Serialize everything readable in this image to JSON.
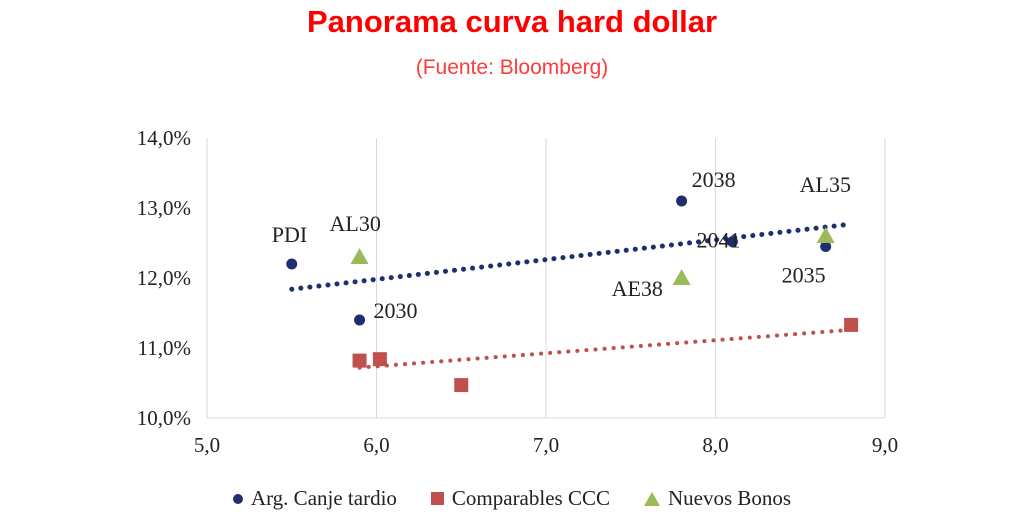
{
  "chart_data": {
    "type": "scatter",
    "title": "Panorama curva hard dollar",
    "subtitle": "(Fuente: Bloomberg)",
    "xlim": [
      5.0,
      9.0
    ],
    "ylim": [
      10.0,
      14.0
    ],
    "x_ticks": [
      "5,0",
      "6,0",
      "7,0",
      "8,0",
      "9,0"
    ],
    "y_ticks": [
      "10,0%",
      "11,0%",
      "12,0%",
      "13,0%",
      "14,0%"
    ],
    "grid": "vertical",
    "legend_position": "bottom",
    "series": [
      {
        "name": "Arg. Canje tardio",
        "marker": "circle",
        "color": "#1f2f6e",
        "points": [
          {
            "x": 5.5,
            "y": 12.2,
            "label": "PDI"
          },
          {
            "x": 5.9,
            "y": 11.4,
            "label": "2030"
          },
          {
            "x": 7.8,
            "y": 13.1,
            "label": "2038"
          },
          {
            "x": 8.1,
            "y": 12.52,
            "label": "2041"
          },
          {
            "x": 8.65,
            "y": 12.45,
            "label": "2035"
          }
        ],
        "trendline": {
          "x": [
            5.5,
            8.8
          ],
          "y": [
            11.84,
            12.77
          ]
        }
      },
      {
        "name": "Comparables CCC",
        "marker": "square",
        "color": "#c0504d",
        "points": [
          {
            "x": 5.9,
            "y": 10.82
          },
          {
            "x": 6.02,
            "y": 10.84
          },
          {
            "x": 6.5,
            "y": 10.47
          },
          {
            "x": 8.8,
            "y": 11.33
          }
        ],
        "trendline": {
          "x": [
            5.9,
            8.8
          ],
          "y": [
            10.72,
            11.26
          ]
        }
      },
      {
        "name": "Nuevos Bonos",
        "marker": "triangle",
        "color": "#9bbb59",
        "points": [
          {
            "x": 5.9,
            "y": 12.3,
            "label": "AL30"
          },
          {
            "x": 7.8,
            "y": 12.0,
            "label": "AE38"
          },
          {
            "x": 8.65,
            "y": 12.6,
            "label": "AL35"
          }
        ]
      }
    ]
  }
}
